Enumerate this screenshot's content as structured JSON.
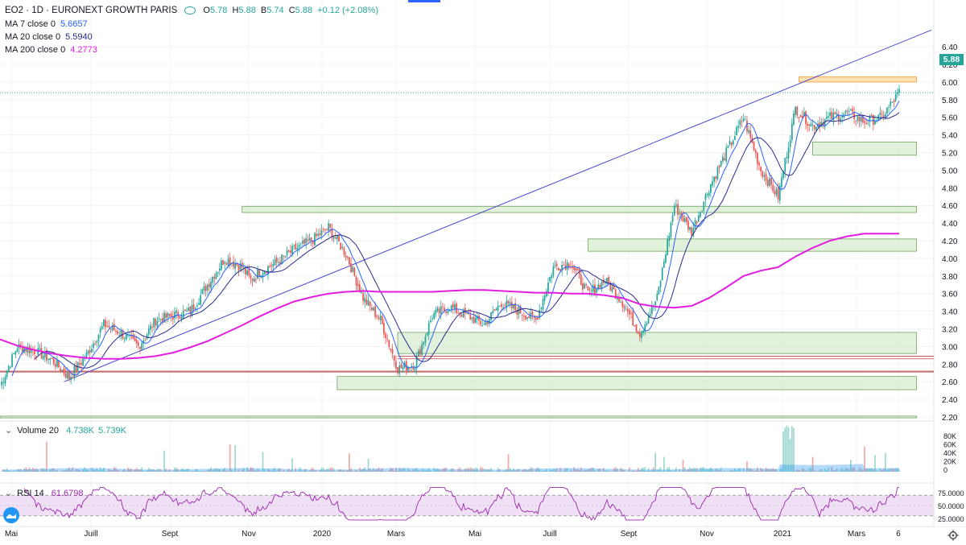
{
  "header": {
    "symbol_line": "EO2 · 1D · EURONEXT GROWTH PARIS",
    "ohlc": [
      {
        "label": "O",
        "value": "5.78"
      },
      {
        "label": "H",
        "value": "5.88"
      },
      {
        "label": "B",
        "value": "5.74"
      },
      {
        "label": "C",
        "value": "5.88"
      }
    ],
    "change": "+0.12 (+2.08%)"
  },
  "indicators": [
    {
      "label": "MA 7 close 0",
      "value": "5.6657",
      "color": "#2962ff"
    },
    {
      "label": "MA 20 close 0",
      "value": "5.5940",
      "color": "#2a2a8a"
    },
    {
      "label": "MA 200 close 0",
      "value": "4.2773",
      "color": "#e31ee0"
    }
  ],
  "volume_pane": {
    "label": "Volume 20",
    "v1": "4.738K",
    "v2": "5.739K",
    "ticks": [
      "80K",
      "60K",
      "40K",
      "20K",
      "0"
    ]
  },
  "rsi_pane": {
    "label": "RSI 14",
    "value": "61.6798",
    "ticks": [
      "75.0000",
      "50.0000",
      "25.0000"
    ]
  },
  "last_price_label": "5.88",
  "colors": {
    "up": "#26a69a",
    "down": "#ef5350",
    "ma200": "#e31ee0",
    "ma20": "#2a2a8a",
    "ma7": "#2962ff",
    "trendline": "#4a4ad0",
    "zone_fill": "#d8ecd0",
    "zone_stroke": "#6fa35c",
    "resistance_fill": "#ffe0b0",
    "resistance_stroke": "#f0a040",
    "rsi_line": "#9c27b0",
    "rsi_band": "#efe0f5"
  },
  "chart_data": [
    {
      "type": "line",
      "title": "EO2 · 1D · EURONEXT GROWTH PARIS",
      "x_tick_labels": [
        "Mai",
        "Juill",
        "Sept",
        "Nov",
        "2020",
        "Mars",
        "Mai",
        "Juill",
        "Sept",
        "Nov",
        "2021",
        "Mars",
        "6"
      ],
      "y_ticks": [
        6.4,
        6.2,
        6.0,
        5.8,
        5.6,
        5.4,
        5.2,
        5.0,
        4.8,
        4.6,
        4.4,
        4.2,
        4.0,
        3.8,
        3.6,
        3.4,
        3.2,
        3.0,
        2.8,
        2.6,
        2.4,
        2.2
      ],
      "ylim": [
        2.15,
        6.45
      ],
      "grid": true,
      "x_index": [
        0,
        10,
        20,
        30,
        40,
        50,
        60,
        70,
        80,
        90,
        100,
        110,
        120,
        130,
        140,
        145,
        150,
        160,
        170,
        180,
        190,
        200,
        210,
        220,
        230,
        240,
        250,
        260,
        270,
        280,
        290,
        300,
        310,
        320,
        330,
        340,
        350,
        360,
        370,
        380,
        390,
        400,
        410,
        420,
        430,
        440,
        450,
        460,
        470,
        480,
        490,
        500,
        510,
        520
      ],
      "x_index_range": [
        0,
        520
      ],
      "series": [
        {
          "name": "Close",
          "values": [
            2.55,
            3.0,
            2.95,
            2.85,
            2.65,
            2.9,
            3.25,
            3.15,
            3.0,
            3.3,
            3.35,
            3.4,
            3.7,
            4.0,
            3.9,
            3.75,
            3.85,
            3.95,
            4.1,
            4.2,
            4.35,
            4.05,
            3.55,
            3.3,
            2.75,
            2.8,
            3.35,
            3.45,
            3.35,
            3.25,
            3.5,
            3.4,
            3.3,
            3.9,
            3.95,
            3.6,
            3.75,
            3.5,
            3.15,
            3.55,
            4.6,
            4.3,
            4.8,
            5.2,
            5.6,
            5.0,
            4.7,
            5.7,
            5.5,
            5.6,
            5.65,
            5.55,
            5.6,
            5.88
          ]
        },
        {
          "name": "MA 200 close 0",
          "values": [
            3.08,
            3.01,
            2.96,
            2.92,
            2.89,
            2.87,
            2.86,
            2.86,
            2.87,
            2.89,
            2.93,
            2.99,
            3.06,
            3.15,
            3.24,
            3.29,
            3.34,
            3.43,
            3.51,
            3.56,
            3.6,
            3.62,
            3.63,
            3.62,
            3.62,
            3.62,
            3.62,
            3.63,
            3.64,
            3.64,
            3.63,
            3.62,
            3.61,
            3.61,
            3.6,
            3.6,
            3.58,
            3.55,
            3.48,
            3.45,
            3.44,
            3.46,
            3.55,
            3.67,
            3.8,
            3.86,
            3.9,
            4.02,
            4.12,
            4.2,
            4.25,
            4.28,
            4.28,
            4.28
          ]
        }
      ],
      "trendline": [
        {
          "x": 37,
          "y": 2.6
        },
        {
          "x": 520,
          "y": 6.48
        }
      ],
      "zones": [
        {
          "x": [
            140,
            530
          ],
          "y": [
            4.52,
            4.59
          ]
        },
        {
          "x": [
            340,
            530
          ],
          "y": [
            4.08,
            4.22
          ]
        },
        {
          "x": [
            230,
            530
          ],
          "y": [
            2.92,
            3.16
          ]
        },
        {
          "x": [
            195,
            530
          ],
          "y": [
            2.51,
            2.66
          ]
        },
        {
          "x": [
            470,
            530
          ],
          "y": [
            5.17,
            5.32
          ]
        },
        {
          "x": [
            0,
            530
          ],
          "y": [
            2.19,
            2.21
          ]
        }
      ],
      "resistance": {
        "x": [
          462,
          530
        ],
        "y": [
          6.0,
          6.06
        ]
      },
      "red_lines": [
        2.71,
        2.72,
        2.86,
        2.89
      ],
      "last_price": 5.88
    },
    {
      "type": "bar",
      "title": "Volume 20",
      "ylabel": "",
      "ylim": [
        0,
        90000
      ]
    },
    {
      "type": "line",
      "title": "RSI 14",
      "ylim": [
        20,
        85
      ],
      "bands": [
        30,
        70
      ],
      "last_value": 61.6798
    }
  ]
}
